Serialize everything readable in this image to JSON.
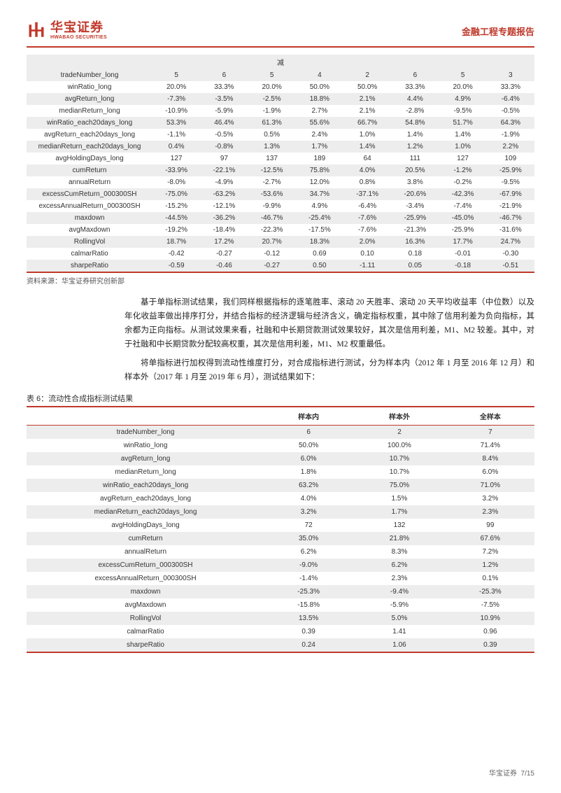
{
  "header": {
    "logo_cn": "华宝证券",
    "logo_en": "HWABAO SECURITIES",
    "report_title": "金融工程专题报告"
  },
  "table1": {
    "subhead": "减",
    "columns_count": 8,
    "rows": [
      {
        "m": "tradeNumber_long",
        "v": [
          "5",
          "6",
          "5",
          "4",
          "2",
          "6",
          "5",
          "3"
        ],
        "shade": true
      },
      {
        "m": "winRatio_long",
        "v": [
          "20.0%",
          "33.3%",
          "20.0%",
          "50.0%",
          "50.0%",
          "33.3%",
          "20.0%",
          "33.3%"
        ],
        "shade": false
      },
      {
        "m": "avgReturn_long",
        "v": [
          "-7.3%",
          "-3.5%",
          "-2.5%",
          "18.8%",
          "2.1%",
          "4.4%",
          "4.9%",
          "-6.4%"
        ],
        "shade": true
      },
      {
        "m": "medianReturn_long",
        "v": [
          "-10.9%",
          "-5.9%",
          "-1.9%",
          "2.7%",
          "2.1%",
          "-2.8%",
          "-9.5%",
          "-0.5%"
        ],
        "shade": false
      },
      {
        "m": "winRatio_each20days_long",
        "v": [
          "53.3%",
          "46.4%",
          "61.3%",
          "55.6%",
          "66.7%",
          "54.8%",
          "51.7%",
          "64.3%"
        ],
        "shade": true
      },
      {
        "m": "avgReturn_each20days_long",
        "v": [
          "-1.1%",
          "-0.5%",
          "0.5%",
          "2.4%",
          "1.0%",
          "1.4%",
          "1.4%",
          "-1.9%"
        ],
        "shade": false
      },
      {
        "m": "medianReturn_each20days_long",
        "v": [
          "0.4%",
          "-0.8%",
          "1.3%",
          "1.7%",
          "1.4%",
          "1.2%",
          "1.0%",
          "2.2%"
        ],
        "shade": true
      },
      {
        "m": "avgHoldingDays_long",
        "v": [
          "127",
          "97",
          "137",
          "189",
          "64",
          "111",
          "127",
          "109"
        ],
        "shade": false
      },
      {
        "m": "cumReturn",
        "v": [
          "-33.9%",
          "-22.1%",
          "-12.5%",
          "75.8%",
          "4.0%",
          "20.5%",
          "-1.2%",
          "-25.9%"
        ],
        "shade": true
      },
      {
        "m": "annualReturn",
        "v": [
          "-8.0%",
          "-4.9%",
          "-2.7%",
          "12.0%",
          "0.8%",
          "3.8%",
          "-0.2%",
          "-9.5%"
        ],
        "shade": false
      },
      {
        "m": "excessCumReturn_000300SH",
        "v": [
          "-75.0%",
          "-63.2%",
          "-53.6%",
          "34.7%",
          "-37.1%",
          "-20.6%",
          "-42.3%",
          "-67.9%"
        ],
        "shade": true
      },
      {
        "m": "excessAnnualReturn_000300SH",
        "v": [
          "-15.2%",
          "-12.1%",
          "-9.9%",
          "4.9%",
          "-6.4%",
          "-3.4%",
          "-7.4%",
          "-21.9%"
        ],
        "shade": false
      },
      {
        "m": "maxdown",
        "v": [
          "-44.5%",
          "-36.2%",
          "-46.7%",
          "-25.4%",
          "-7.6%",
          "-25.9%",
          "-45.0%",
          "-46.7%"
        ],
        "shade": true
      },
      {
        "m": "avgMaxdown",
        "v": [
          "-19.2%",
          "-18.4%",
          "-22.3%",
          "-17.5%",
          "-7.6%",
          "-21.3%",
          "-25.9%",
          "-31.6%"
        ],
        "shade": false
      },
      {
        "m": "RollingVol",
        "v": [
          "18.7%",
          "17.2%",
          "20.7%",
          "18.3%",
          "2.0%",
          "16.3%",
          "17.7%",
          "24.7%"
        ],
        "shade": true
      },
      {
        "m": "calmarRatio",
        "v": [
          "-0.42",
          "-0.27",
          "-0.12",
          "0.69",
          "0.10",
          "0.18",
          "-0.01",
          "-0.30"
        ],
        "shade": false
      },
      {
        "m": "sharpeRatio",
        "v": [
          "-0.59",
          "-0.46",
          "-0.27",
          "0.50",
          "-1.11",
          "0.05",
          "-0.18",
          "-0.51"
        ],
        "shade": true
      }
    ],
    "source": "资料来源：华宝证券研究创新部"
  },
  "paragraphs": {
    "p1": "基于单指标测试结果，我们同样根据指标的逐笔胜率、滚动 20 天胜率、滚动 20 天平均收益率（中位数）以及年化收益率做出排序打分，并结合指标的经济逻辑与经济含义，确定指标权重，其中除了信用利差为负向指标，其余都为正向指标。从测试效果来看，社融和中长期贷款测试效果较好，其次是信用利差，M1、M2 较差。其中，对于社融和中长期贷款分配较高权重，其次是信用利差，M1、M2 权重最低。",
    "p2": "将单指标进行加权得到流动性维度打分，对合成指标进行测试，分为样本内（2012 年 1 月至 2016 年 12 月）和样本外（2017 年 1 月至 2019 年 6 月），测试结果如下："
  },
  "table2": {
    "title": "表 6：流动性合成指标测试结果",
    "headers": [
      "",
      "样本内",
      "样本外",
      "全样本"
    ],
    "rows": [
      {
        "m": "tradeNumber_long",
        "v": [
          "6",
          "2",
          "7"
        ],
        "shade": true
      },
      {
        "m": "winRatio_long",
        "v": [
          "50.0%",
          "100.0%",
          "71.4%"
        ],
        "shade": false
      },
      {
        "m": "avgReturn_long",
        "v": [
          "6.0%",
          "10.7%",
          "8.4%"
        ],
        "shade": true
      },
      {
        "m": "medianReturn_long",
        "v": [
          "1.8%",
          "10.7%",
          "6.0%"
        ],
        "shade": false
      },
      {
        "m": "winRatio_each20days_long",
        "v": [
          "63.2%",
          "75.0%",
          "71.0%"
        ],
        "shade": true
      },
      {
        "m": "avgReturn_each20days_long",
        "v": [
          "4.0%",
          "1.5%",
          "3.2%"
        ],
        "shade": false
      },
      {
        "m": "medianReturn_each20days_long",
        "v": [
          "3.2%",
          "1.7%",
          "2.3%"
        ],
        "shade": true
      },
      {
        "m": "avgHoldingDays_long",
        "v": [
          "72",
          "132",
          "99"
        ],
        "shade": false
      },
      {
        "m": "cumReturn",
        "v": [
          "35.0%",
          "21.8%",
          "67.6%"
        ],
        "shade": true
      },
      {
        "m": "annualReturn",
        "v": [
          "6.2%",
          "8.3%",
          "7.2%"
        ],
        "shade": false
      },
      {
        "m": "excessCumReturn_000300SH",
        "v": [
          "-9.0%",
          "6.2%",
          "1.2%"
        ],
        "shade": true
      },
      {
        "m": "excessAnnualReturn_000300SH",
        "v": [
          "-1.4%",
          "2.3%",
          "0.1%"
        ],
        "shade": false
      },
      {
        "m": "maxdown",
        "v": [
          "-25.3%",
          "-9.4%",
          "-25.3%"
        ],
        "shade": true
      },
      {
        "m": "avgMaxdown",
        "v": [
          "-15.8%",
          "-5.9%",
          "-7.5%"
        ],
        "shade": false
      },
      {
        "m": "RollingVol",
        "v": [
          "13.5%",
          "5.0%",
          "10.9%"
        ],
        "shade": true
      },
      {
        "m": "calmarRatio",
        "v": [
          "0.39",
          "1.41",
          "0.96"
        ],
        "shade": false
      },
      {
        "m": "sharpeRatio",
        "v": [
          "0.24",
          "1.06",
          "0.39"
        ],
        "shade": true
      }
    ]
  },
  "footer": {
    "company": "华宝证券",
    "page": "7/15"
  },
  "colors": {
    "brand_red": "#c0392b",
    "row_shade": "#ededed",
    "text": "#333333",
    "background": "#ffffff"
  }
}
